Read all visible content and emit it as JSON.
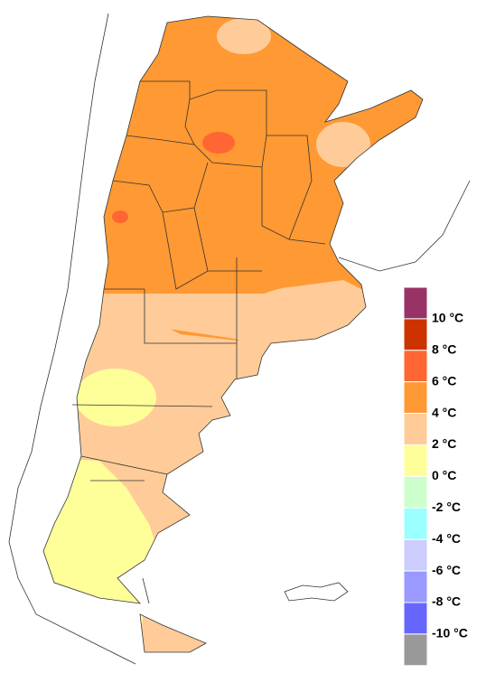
{
  "legend": {
    "colors": [
      "#993366",
      "#cc3300",
      "#ff6633",
      "#ff9933",
      "#ffcc99",
      "#ffff99",
      "#ccffcc",
      "#99ffff",
      "#ccccff",
      "#9999ff",
      "#6666ff",
      "#999999"
    ],
    "labels": [
      "10 °C",
      "8 °C",
      "6 °C",
      "4 °C",
      "2 °C",
      "0 °C",
      "-2 °C",
      "-4 °C",
      "-6 °C",
      "-8 °C",
      "-10 °C"
    ]
  }
}
